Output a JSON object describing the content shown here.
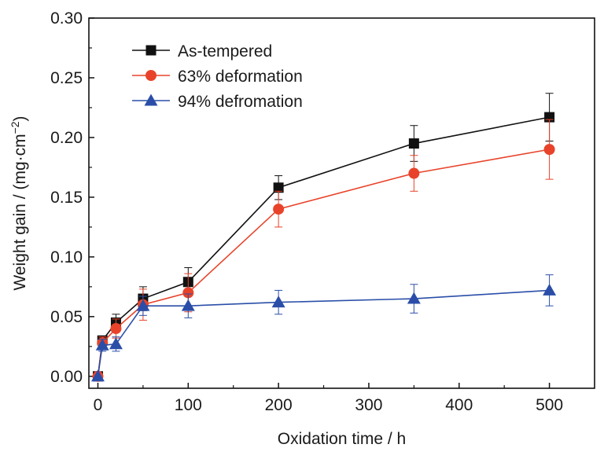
{
  "chart_data": {
    "type": "line",
    "title": "",
    "xlabel": "Oxidation time / h",
    "ylabel_main": "Weight gain / (mg·cm",
    "ylabel_sup": "−2",
    "ylabel_end": ")",
    "xlim": [
      -10,
      550
    ],
    "ylim": [
      -0.01,
      0.3
    ],
    "xticks": [
      0,
      100,
      200,
      300,
      400,
      500
    ],
    "xtick_labels": [
      "0",
      "100",
      "200",
      "300",
      "400",
      "500"
    ],
    "yticks": [
      0.0,
      0.05,
      0.1,
      0.15,
      0.2,
      0.25,
      0.3
    ],
    "ytick_labels": [
      "0.00",
      "0.05",
      "0.10",
      "0.15",
      "0.20",
      "0.25",
      "0.30"
    ],
    "grid": false,
    "legend_position": "top-left",
    "series": [
      {
        "name": "As-tempered",
        "color": "#111111",
        "marker": "square",
        "x": [
          0,
          5,
          20,
          50,
          100,
          200,
          350,
          500
        ],
        "y": [
          0.0,
          0.03,
          0.045,
          0.065,
          0.079,
          0.158,
          0.195,
          0.217
        ],
        "err": [
          0.0,
          0.003,
          0.007,
          0.01,
          0.012,
          0.01,
          0.015,
          0.02
        ]
      },
      {
        "name": "63% deformation",
        "color": "#e8432a",
        "marker": "circle",
        "x": [
          0,
          5,
          20,
          50,
          100,
          200,
          350,
          500
        ],
        "y": [
          0.0,
          0.028,
          0.04,
          0.06,
          0.07,
          0.14,
          0.17,
          0.19
        ],
        "err": [
          0.0,
          0.005,
          0.008,
          0.013,
          0.016,
          0.015,
          0.015,
          0.025
        ]
      },
      {
        "name": "94% defromation",
        "color": "#2a4ea8",
        "marker": "triangle",
        "x": [
          0,
          5,
          20,
          50,
          100,
          200,
          350,
          500
        ],
        "y": [
          0.0,
          0.026,
          0.027,
          0.059,
          0.059,
          0.062,
          0.065,
          0.072
        ],
        "err": [
          0.0,
          0.005,
          0.006,
          0.008,
          0.01,
          0.01,
          0.012,
          0.013
        ]
      }
    ]
  }
}
